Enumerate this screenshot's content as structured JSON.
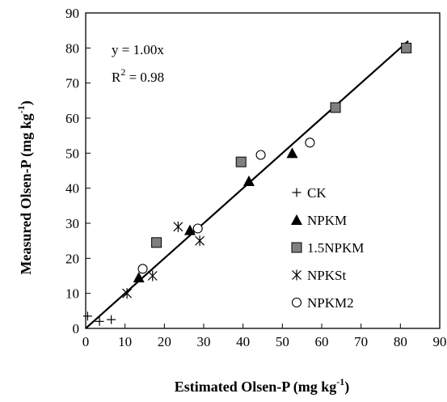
{
  "chart_data": {
    "type": "scatter",
    "xlabel": "Estimated Olsen-P (mg kg",
    "xlabel_sup": "-1",
    "xlabel_suffix": ")",
    "ylabel": "Measured Olsen-P (mg kg",
    "ylabel_sup": "-1",
    "ylabel_suffix": ")",
    "xlim": [
      0,
      90
    ],
    "ylim": [
      0,
      90
    ],
    "xticks": [
      0,
      10,
      20,
      30,
      40,
      50,
      60,
      70,
      80,
      90
    ],
    "yticks": [
      0,
      10,
      20,
      30,
      40,
      50,
      60,
      70,
      80,
      90
    ],
    "grid": false,
    "legend_position": "bottom-right",
    "annotations": {
      "equation": "y = 1.00x",
      "r2_prefix": "R",
      "r2_sup": "2",
      "r2_suffix": " = 0.98"
    },
    "fit_line": {
      "slope": 1.0,
      "x": [
        0,
        82
      ]
    },
    "series": [
      {
        "name": "CK",
        "marker": "plus",
        "points": [
          [
            0.5,
            3.5
          ],
          [
            3.5,
            2.0
          ],
          [
            6.5,
            2.5
          ]
        ]
      },
      {
        "name": "NPKM",
        "marker": "triangle",
        "points": [
          [
            13.5,
            14.5
          ],
          [
            26.5,
            28.0
          ],
          [
            41.5,
            42.0
          ],
          [
            52.5,
            50.0
          ]
        ]
      },
      {
        "name": "1.5NPKM",
        "marker": "square",
        "points": [
          [
            18.0,
            24.5
          ],
          [
            39.5,
            47.5
          ],
          [
            63.5,
            63.0
          ],
          [
            81.5,
            80.0
          ]
        ]
      },
      {
        "name": "NPKSt",
        "marker": "asterisk",
        "points": [
          [
            10.5,
            10.0
          ],
          [
            17.0,
            15.0
          ],
          [
            23.5,
            29.0
          ],
          [
            29.0,
            25.0
          ]
        ]
      },
      {
        "name": "NPKM2",
        "marker": "circle",
        "points": [
          [
            14.5,
            17.0
          ],
          [
            28.5,
            28.5
          ],
          [
            44.5,
            49.5
          ],
          [
            57.0,
            53.0
          ]
        ]
      }
    ]
  }
}
